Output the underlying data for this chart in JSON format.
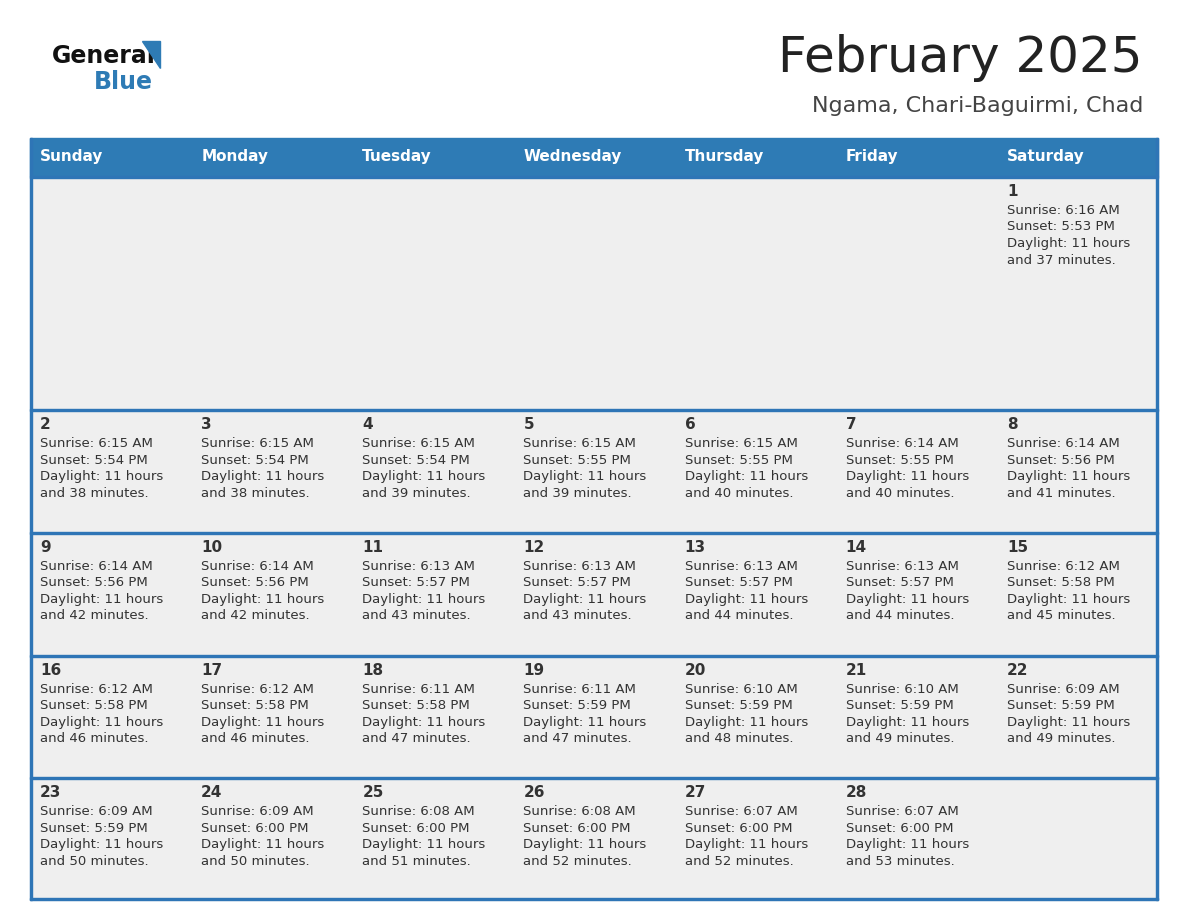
{
  "title": "February 2025",
  "subtitle": "Ngama, Chari-Baguirmi, Chad",
  "days_of_week": [
    "Sunday",
    "Monday",
    "Tuesday",
    "Wednesday",
    "Thursday",
    "Friday",
    "Saturday"
  ],
  "header_bg": "#2E7BB5",
  "header_text": "#FFFFFF",
  "row_bg": "#EFEFEF",
  "cell_text": "#333333",
  "separator_color": "#2E75B6",
  "title_color": "#222222",
  "subtitle_color": "#444444",
  "logo_general_color": "#111111",
  "logo_blue_color": "#2E7BB5",
  "calendar_data": [
    [
      null,
      null,
      null,
      null,
      null,
      null,
      {
        "day": 1,
        "sunrise": "6:16 AM",
        "sunset": "5:53 PM",
        "daylight": "11 hours",
        "daylight2": "and 37 minutes."
      }
    ],
    [
      {
        "day": 2,
        "sunrise": "6:15 AM",
        "sunset": "5:54 PM",
        "daylight": "11 hours",
        "daylight2": "and 38 minutes."
      },
      {
        "day": 3,
        "sunrise": "6:15 AM",
        "sunset": "5:54 PM",
        "daylight": "11 hours",
        "daylight2": "and 38 minutes."
      },
      {
        "day": 4,
        "sunrise": "6:15 AM",
        "sunset": "5:54 PM",
        "daylight": "11 hours",
        "daylight2": "and 39 minutes."
      },
      {
        "day": 5,
        "sunrise": "6:15 AM",
        "sunset": "5:55 PM",
        "daylight": "11 hours",
        "daylight2": "and 39 minutes."
      },
      {
        "day": 6,
        "sunrise": "6:15 AM",
        "sunset": "5:55 PM",
        "daylight": "11 hours",
        "daylight2": "and 40 minutes."
      },
      {
        "day": 7,
        "sunrise": "6:14 AM",
        "sunset": "5:55 PM",
        "daylight": "11 hours",
        "daylight2": "and 40 minutes."
      },
      {
        "day": 8,
        "sunrise": "6:14 AM",
        "sunset": "5:56 PM",
        "daylight": "11 hours",
        "daylight2": "and 41 minutes."
      }
    ],
    [
      {
        "day": 9,
        "sunrise": "6:14 AM",
        "sunset": "5:56 PM",
        "daylight": "11 hours",
        "daylight2": "and 42 minutes."
      },
      {
        "day": 10,
        "sunrise": "6:14 AM",
        "sunset": "5:56 PM",
        "daylight": "11 hours",
        "daylight2": "and 42 minutes."
      },
      {
        "day": 11,
        "sunrise": "6:13 AM",
        "sunset": "5:57 PM",
        "daylight": "11 hours",
        "daylight2": "and 43 minutes."
      },
      {
        "day": 12,
        "sunrise": "6:13 AM",
        "sunset": "5:57 PM",
        "daylight": "11 hours",
        "daylight2": "and 43 minutes."
      },
      {
        "day": 13,
        "sunrise": "6:13 AM",
        "sunset": "5:57 PM",
        "daylight": "11 hours",
        "daylight2": "and 44 minutes."
      },
      {
        "day": 14,
        "sunrise": "6:13 AM",
        "sunset": "5:57 PM",
        "daylight": "11 hours",
        "daylight2": "and 44 minutes."
      },
      {
        "day": 15,
        "sunrise": "6:12 AM",
        "sunset": "5:58 PM",
        "daylight": "11 hours",
        "daylight2": "and 45 minutes."
      }
    ],
    [
      {
        "day": 16,
        "sunrise": "6:12 AM",
        "sunset": "5:58 PM",
        "daylight": "11 hours",
        "daylight2": "and 46 minutes."
      },
      {
        "day": 17,
        "sunrise": "6:12 AM",
        "sunset": "5:58 PM",
        "daylight": "11 hours",
        "daylight2": "and 46 minutes."
      },
      {
        "day": 18,
        "sunrise": "6:11 AM",
        "sunset": "5:58 PM",
        "daylight": "11 hours",
        "daylight2": "and 47 minutes."
      },
      {
        "day": 19,
        "sunrise": "6:11 AM",
        "sunset": "5:59 PM",
        "daylight": "11 hours",
        "daylight2": "and 47 minutes."
      },
      {
        "day": 20,
        "sunrise": "6:10 AM",
        "sunset": "5:59 PM",
        "daylight": "11 hours",
        "daylight2": "and 48 minutes."
      },
      {
        "day": 21,
        "sunrise": "6:10 AM",
        "sunset": "5:59 PM",
        "daylight": "11 hours",
        "daylight2": "and 49 minutes."
      },
      {
        "day": 22,
        "sunrise": "6:09 AM",
        "sunset": "5:59 PM",
        "daylight": "11 hours",
        "daylight2": "and 49 minutes."
      }
    ],
    [
      {
        "day": 23,
        "sunrise": "6:09 AM",
        "sunset": "5:59 PM",
        "daylight": "11 hours",
        "daylight2": "and 50 minutes."
      },
      {
        "day": 24,
        "sunrise": "6:09 AM",
        "sunset": "6:00 PM",
        "daylight": "11 hours",
        "daylight2": "and 50 minutes."
      },
      {
        "day": 25,
        "sunrise": "6:08 AM",
        "sunset": "6:00 PM",
        "daylight": "11 hours",
        "daylight2": "and 51 minutes."
      },
      {
        "day": 26,
        "sunrise": "6:08 AM",
        "sunset": "6:00 PM",
        "daylight": "11 hours",
        "daylight2": "and 52 minutes."
      },
      {
        "day": 27,
        "sunrise": "6:07 AM",
        "sunset": "6:00 PM",
        "daylight": "11 hours",
        "daylight2": "and 52 minutes."
      },
      {
        "day": 28,
        "sunrise": "6:07 AM",
        "sunset": "6:00 PM",
        "daylight": "11 hours",
        "daylight2": "and 53 minutes."
      },
      null
    ]
  ]
}
